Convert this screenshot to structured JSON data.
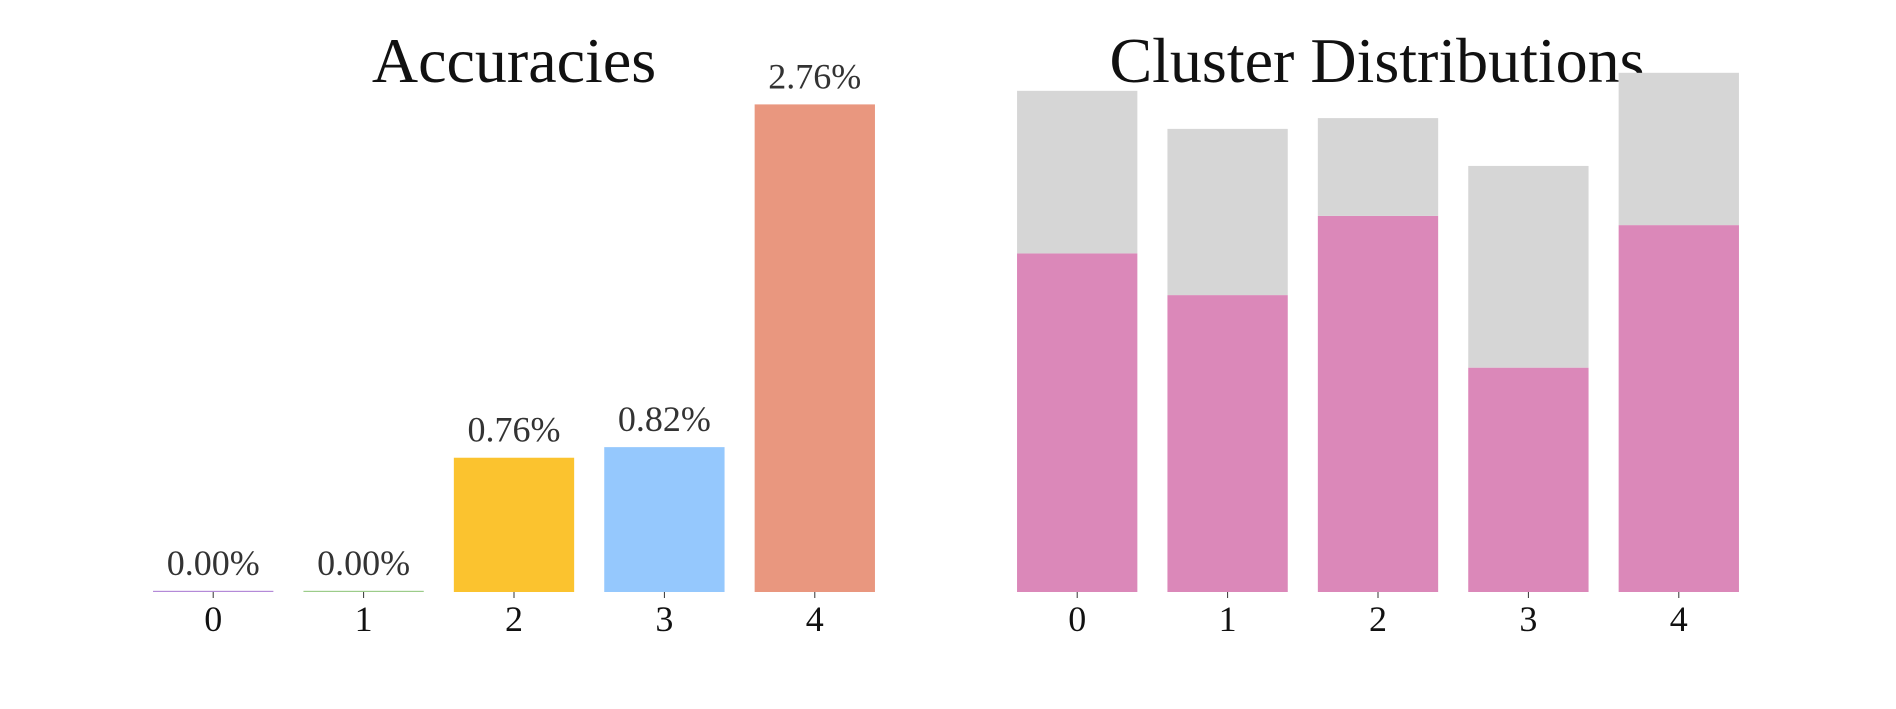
{
  "chart_data": [
    {
      "type": "bar",
      "title": "Accuracies",
      "xlabel": "",
      "ylabel": "",
      "categories": [
        "0",
        "1",
        "2",
        "3",
        "4"
      ],
      "values": [
        0.0,
        0.0,
        0.76,
        0.82,
        2.76
      ],
      "value_labels": [
        "0.00%",
        "0.00%",
        "0.76%",
        "0.82%",
        "2.76%"
      ],
      "colors": [
        "#b48ad8",
        "#9ccc8a",
        "#fbc32f",
        "#95c8fd",
        "#e9977f"
      ],
      "ylim": [
        0,
        3.0
      ],
      "grid": false,
      "legend": "none"
    },
    {
      "type": "bar",
      "stacked": true,
      "title": "Cluster Distributions",
      "xlabel": "",
      "ylabel": "",
      "categories": [
        "0",
        "1",
        "2",
        "3",
        "4"
      ],
      "series": [
        {
          "color": "#db88b9",
          "values": [
            0.658,
            0.577,
            0.731,
            0.436,
            0.713
          ]
        },
        {
          "color": "#d6d6d6",
          "values": [
            0.316,
            0.323,
            0.19,
            0.392,
            0.296
          ]
        }
      ],
      "ylim": [
        0,
        1.03
      ],
      "grid": false,
      "legend": "none"
    }
  ]
}
